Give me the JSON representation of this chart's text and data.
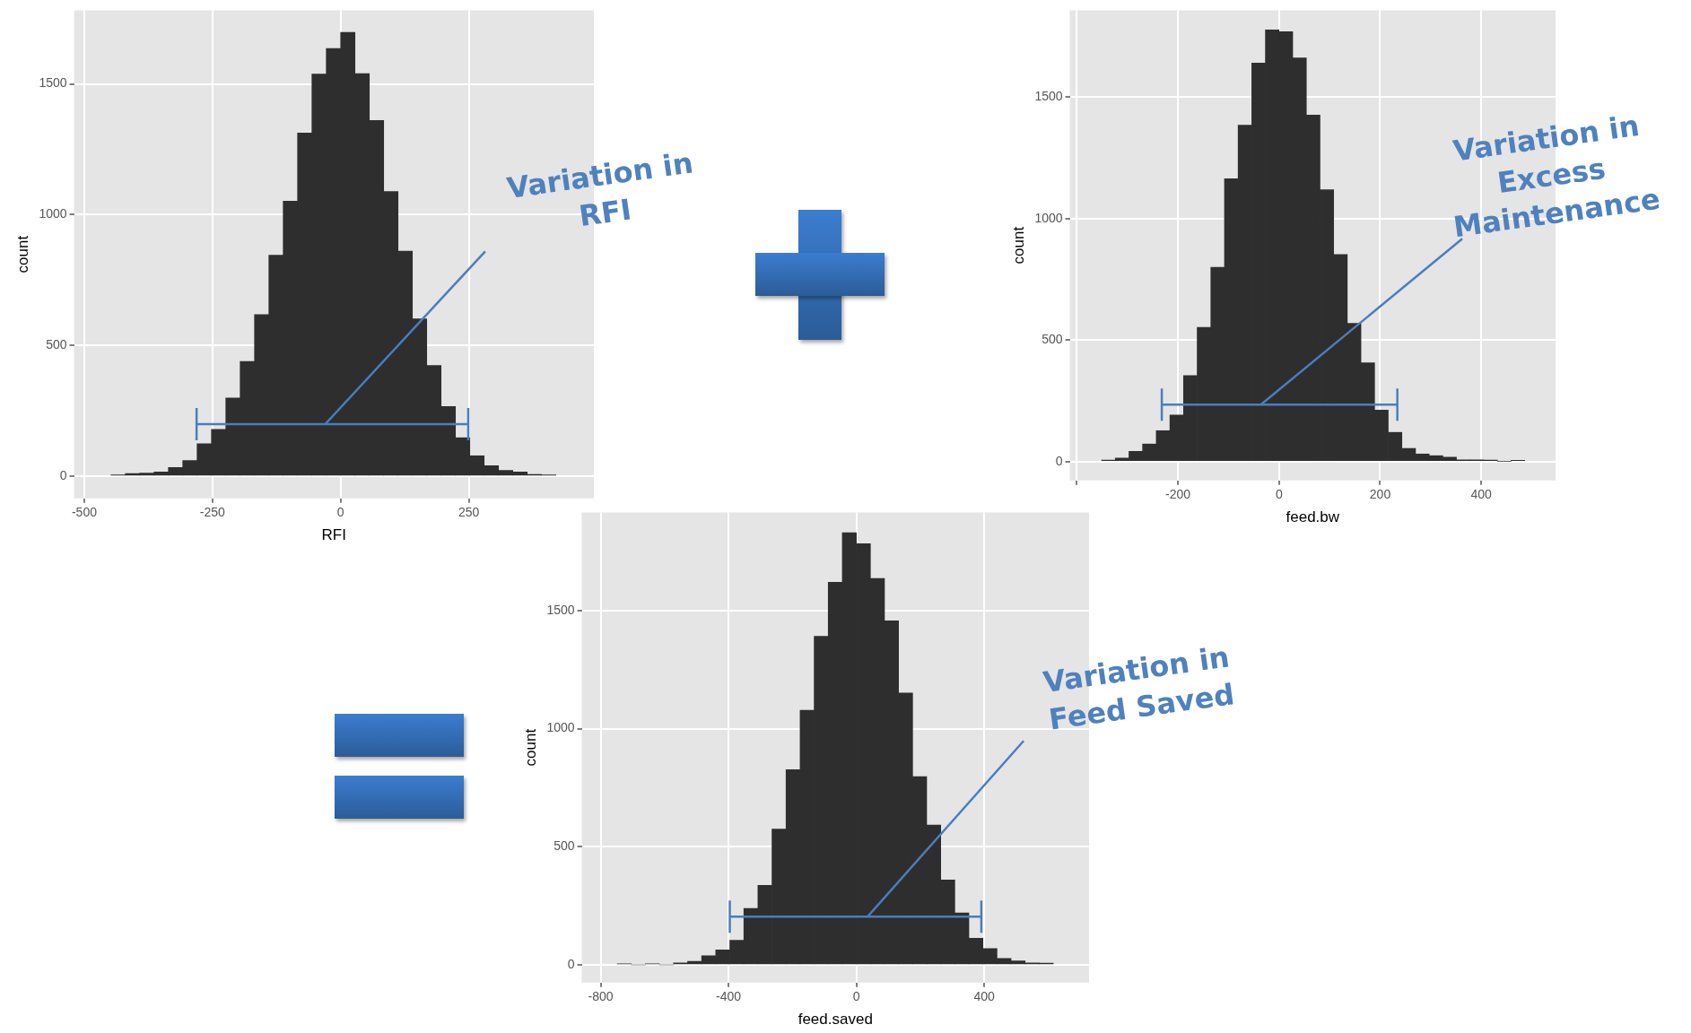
{
  "chart_data": [
    {
      "type": "histogram",
      "xlabel": "RFI",
      "ylabel": "count",
      "color": "#2e2e2e",
      "bins": [
        -448,
        -420,
        -392,
        -364,
        -336,
        -308,
        -280,
        -252,
        -224,
        -196,
        -168,
        -140,
        -112,
        -84,
        -56,
        -28,
        0,
        28,
        56,
        84,
        112,
        140,
        168,
        196,
        224,
        252,
        280,
        308,
        336,
        364,
        392,
        420
      ],
      "values": [
        5,
        10,
        12,
        16,
        33,
        60,
        124,
        179,
        299,
        439,
        618,
        845,
        1052,
        1312,
        1538,
        1636,
        1697,
        1540,
        1360,
        1089,
        861,
        602,
        423,
        266,
        147,
        78,
        40,
        22,
        16,
        7,
        5
      ],
      "xlim": [
        -520,
        494
      ],
      "ylim": [
        -85,
        1782
      ],
      "xticks": [
        -500,
        -250,
        0,
        250
      ],
      "yticks": [
        0,
        500,
        1000,
        1500
      ],
      "grid": true,
      "series": [
        {
          "type": "line",
          "color": "#4a7ebb",
          "x": [
            -281,
            249
          ],
          "values": [
            199,
            199
          ]
        }
      ],
      "annotations": [
        {
          "text": "Variation in RFI",
          "x": -30,
          "y": 199
        }
      ]
    },
    {
      "type": "histogram",
      "xlabel": "feed.bw",
      "ylabel": "count",
      "color": "#2e2e2e",
      "bins": [
        -351,
        -324,
        -297,
        -270,
        -243,
        -216,
        -189,
        -162,
        -135,
        -108,
        -81,
        -54,
        -27,
        0,
        27,
        54,
        81,
        108,
        135,
        162,
        189,
        216,
        243,
        270,
        297,
        324,
        351,
        378,
        405,
        432,
        459,
        486
      ],
      "values": [
        6,
        14,
        42,
        72,
        127,
        191,
        354,
        552,
        800,
        1164,
        1385,
        1640,
        1777,
        1770,
        1662,
        1426,
        1119,
        852,
        569,
        406,
        212,
        120,
        54,
        31,
        24,
        18,
        7,
        7,
        6,
        0,
        5
      ],
      "xlim": [
        -414,
        547
      ],
      "ylim": [
        -78,
        1858
      ],
      "xticks": [
        {
          "value": -400,
          "label": null
        },
        -200,
        0,
        200,
        400
      ],
      "yticks": [
        0,
        500,
        1000,
        1500
      ],
      "grid": true,
      "series": [
        {
          "type": "line",
          "color": "#4a7ebb",
          "x": [
            -232,
            234
          ],
          "values": [
            234,
            234
          ]
        }
      ],
      "annotations": [
        {
          "text": "Variation in Excess Maintenance",
          "x": -36,
          "y": 234
        }
      ]
    },
    {
      "type": "histogram",
      "xlabel": "feed.saved",
      "ylabel": "count",
      "color": "#2e2e2e",
      "bins": [
        -748,
        -704,
        -660,
        -616,
        -572,
        -528,
        -484,
        -440,
        -396,
        -352,
        -308,
        -264,
        -220,
        -176,
        -132,
        -88,
        -44,
        0,
        44,
        88,
        132,
        176,
        220,
        264,
        308,
        352,
        396,
        440,
        484,
        528,
        572,
        616
      ],
      "values": [
        5,
        0,
        5,
        0,
        8,
        15,
        39,
        63,
        104,
        239,
        337,
        575,
        826,
        1078,
        1391,
        1619,
        1829,
        1782,
        1635,
        1456,
        1151,
        797,
        592,
        359,
        220,
        113,
        69,
        27,
        17,
        8,
        7
      ],
      "xlim": [
        -859,
        728
      ],
      "ylim": [
        -75,
        1915
      ],
      "xticks": [
        -800,
        -400,
        0,
        400
      ],
      "yticks": [
        0,
        500,
        1000,
        1500
      ],
      "grid": true,
      "series": [
        {
          "type": "line",
          "color": "#4a7ebb",
          "x": [
            -396,
            391
          ],
          "values": [
            204,
            204
          ]
        }
      ],
      "annotations": [
        {
          "text": "Variation in Feed Saved",
          "x": 35,
          "y": 204
        }
      ]
    }
  ]
}
